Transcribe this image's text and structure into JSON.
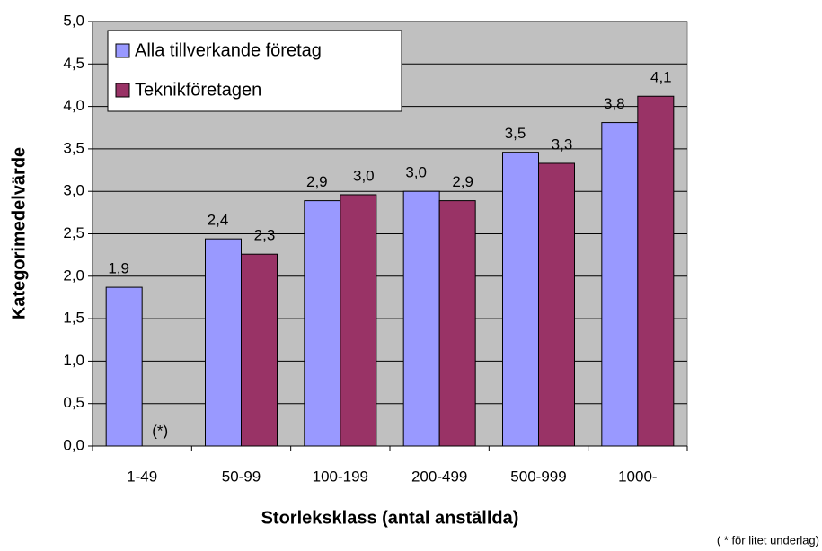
{
  "chart_data": {
    "type": "bar",
    "categories": [
      "1-49",
      "50-99",
      "100-199",
      "200-499",
      "500-999",
      "1000-"
    ],
    "series": [
      {
        "name": "Alla tillverkande företag",
        "color": "#9999ff",
        "values": [
          1.87,
          2.44,
          2.89,
          3.0,
          3.46,
          3.81
        ],
        "value_labels": [
          "1,9",
          "2,4",
          "2,9",
          "3,0",
          "3,5",
          "3,8"
        ]
      },
      {
        "name": "Teknikföretagen",
        "color": "#993366",
        "values": [
          null,
          2.26,
          2.96,
          2.89,
          3.33,
          4.12
        ],
        "value_labels": [
          null,
          "2,3",
          "3,0",
          "2,9",
          "3,3",
          "4,1"
        ]
      }
    ],
    "ylabel": "Kategorimedelvärde",
    "xlabel": "Storleksklass (antal anställda)",
    "annotations": [
      "(*)",
      "( * för litet underlag)"
    ],
    "ylim": [
      0,
      5
    ],
    "yticks": [
      {
        "value": 0,
        "label": "0,0"
      },
      {
        "value": 0.5,
        "label": "0,5"
      },
      {
        "value": 1,
        "label": "1,0"
      },
      {
        "value": 1.5,
        "label": "1,5"
      },
      {
        "value": 2,
        "label": "2,0"
      },
      {
        "value": 2.5,
        "label": "2,5"
      },
      {
        "value": 3,
        "label": "3,0"
      },
      {
        "value": 3.5,
        "label": "3,5"
      },
      {
        "value": 4,
        "label": "4,0"
      },
      {
        "value": 4.5,
        "label": "4,5"
      },
      {
        "value": 5,
        "label": "5,0"
      }
    ],
    "grid": true,
    "legend": "upper left",
    "background": "#c0c0c0"
  }
}
